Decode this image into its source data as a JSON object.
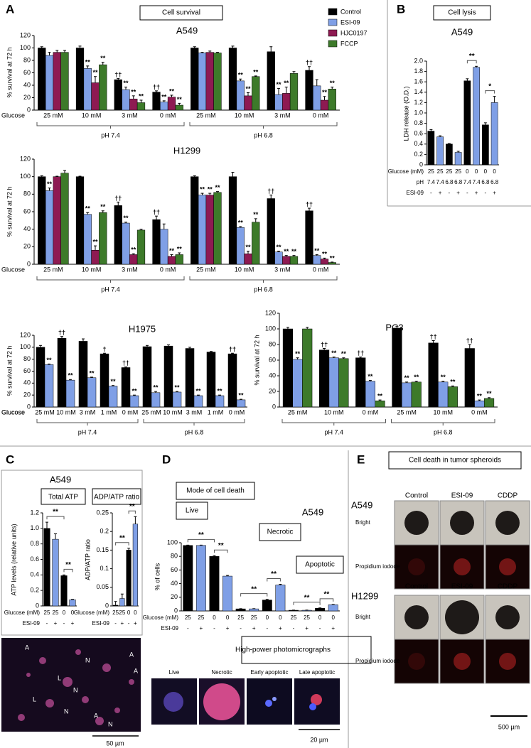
{
  "panels": [
    {
      "letter": "A",
      "heading": "Cell survival"
    },
    {
      "letter": "B",
      "heading": "Cell lysis"
    },
    {
      "letter": "C",
      "heading": "A549"
    },
    {
      "letter": "D",
      "heading": "Mode of cell death"
    },
    {
      "letter": "E",
      "heading": "Cell death in tumor spheroids"
    }
  ],
  "chart_data": [
    {
      "type": "bar",
      "title": "A549",
      "ylabel": "% survival at 72 h",
      "ylim": [
        0,
        120
      ],
      "yticks": [
        0,
        20,
        40,
        60,
        80,
        100,
        120
      ],
      "xlabel": "Glucose",
      "categories": [
        "25 mM",
        "10 mM",
        "3 mM",
        "0 mM",
        "25 mM",
        "10 mM",
        "3 mM",
        "0 mM"
      ],
      "groups": [
        "pH 7.4",
        "pH 6.8"
      ],
      "series": [
        {
          "name": "Control",
          "color": "#000000",
          "values": [
            100,
            100,
            49,
            29,
            100,
            100,
            94,
            64
          ],
          "errors": [
            2,
            3,
            2,
            2,
            2,
            3,
            8,
            6
          ],
          "significance": [
            null,
            null,
            "††",
            "††",
            null,
            null,
            null,
            "††"
          ]
        },
        {
          "name": "ESI-09",
          "color": "#7f9fe6",
          "values": [
            88,
            67,
            33,
            13,
            92,
            47,
            25,
            39
          ],
          "errors": [
            5,
            4,
            4,
            2,
            1,
            3,
            10,
            10
          ],
          "significance": [
            null,
            "**",
            "**",
            "**",
            null,
            "**",
            "**",
            null
          ]
        },
        {
          "name": "HJC0197",
          "color": "#8e1a52",
          "values": [
            93,
            44,
            18,
            21,
            93,
            23,
            27,
            16
          ],
          "errors": [
            3,
            10,
            5,
            3,
            2,
            5,
            10,
            6
          ],
          "significance": [
            null,
            "**",
            "**",
            "**",
            null,
            "**",
            "**",
            "**"
          ]
        },
        {
          "name": "FCCP",
          "color": "#3d7a2a",
          "values": [
            93,
            73,
            12,
            8,
            92,
            54,
            59,
            34
          ],
          "errors": [
            3,
            4,
            4,
            3,
            1,
            1,
            3,
            3
          ],
          "significance": [
            null,
            "**",
            "**",
            "**",
            null,
            "**",
            null,
            "**"
          ]
        }
      ]
    },
    {
      "type": "bar",
      "title": "H1299",
      "ylabel": "% survival at 72 h",
      "ylim": [
        0,
        120
      ],
      "yticks": [
        0,
        20,
        40,
        60,
        80,
        100,
        120
      ],
      "xlabel": "Glucose",
      "categories": [
        "25 mM",
        "10 mM",
        "3 mM",
        "0 mM",
        "25 mM",
        "10 mM",
        "3 mM",
        "0 mM"
      ],
      "groups": [
        "pH 7.4",
        "pH 6.8"
      ],
      "series": [
        {
          "name": "Control",
          "color": "#000000",
          "values": [
            100,
            100,
            67,
            51,
            100,
            100,
            75,
            61
          ],
          "errors": [
            1,
            0.5,
            4,
            4,
            1,
            5,
            4,
            3
          ],
          "significance": [
            null,
            null,
            "††",
            "††",
            null,
            null,
            "††",
            "††"
          ]
        },
        {
          "name": "ESI-09",
          "color": "#7f9fe6",
          "values": [
            84,
            57,
            47,
            40,
            79,
            42,
            14,
            10
          ],
          "errors": [
            3,
            2,
            1,
            6,
            2,
            1,
            1,
            1
          ],
          "significance": [
            "**",
            "**",
            "**",
            null,
            "**",
            "**",
            "**",
            "**"
          ]
        },
        {
          "name": "HJC0197",
          "color": "#8e1a52",
          "values": [
            100,
            16,
            11,
            9,
            79,
            12,
            9,
            6
          ],
          "errors": [
            0.5,
            5,
            1,
            2,
            2,
            3,
            1,
            1
          ],
          "significance": [
            null,
            "**",
            "**",
            "**",
            "**",
            "**",
            "**",
            "**"
          ]
        },
        {
          "name": "FCCP",
          "color": "#3d7a2a",
          "values": [
            104,
            59,
            39,
            11,
            82,
            48,
            9,
            2
          ],
          "errors": [
            3,
            2,
            1,
            2,
            1,
            4,
            1,
            0.5
          ],
          "significance": [
            null,
            "**",
            null,
            "**",
            "**",
            "**",
            "**",
            "**"
          ]
        }
      ]
    },
    {
      "type": "bar",
      "title": "H1975",
      "ylabel": "% survival at 72 h",
      "ylim": [
        0,
        120
      ],
      "yticks": [
        0,
        20,
        40,
        60,
        80,
        100,
        120
      ],
      "xlabel": "Glucose",
      "categories": [
        "25 mM",
        "10 mM",
        "3 mM",
        "1 mM",
        "0 mM",
        "25 mM",
        "10 mM",
        "3 mM",
        "1 mM",
        "0 mM"
      ],
      "groups": [
        "pH 7.4",
        "pH 6.8"
      ],
      "series": [
        {
          "name": "Control",
          "color": "#000000",
          "values": [
            100,
            115,
            110,
            89,
            66,
            101,
            102,
            98,
            92,
            89
          ],
          "errors": [
            3,
            3,
            4,
            1,
            1,
            2,
            2,
            2,
            1,
            1
          ],
          "significance": [
            null,
            "††",
            null,
            "†",
            "††",
            null,
            null,
            null,
            null,
            "††"
          ]
        },
        {
          "name": "ESI-09",
          "color": "#7f9fe6",
          "values": [
            71,
            45,
            49,
            35,
            19,
            24,
            25,
            19,
            19,
            12
          ],
          "errors": [
            1,
            1,
            1,
            1,
            1,
            2,
            1,
            1,
            1,
            1
          ],
          "significance": [
            "**",
            "**",
            "**",
            "**",
            "**",
            "**",
            "**",
            "**",
            "**",
            "**"
          ]
        }
      ]
    },
    {
      "type": "bar",
      "title": "PC3",
      "ylabel": "% survival at 72 h",
      "ylim": [
        0,
        120
      ],
      "yticks": [
        0,
        20,
        40,
        60,
        80,
        100,
        120
      ],
      "xlabel": "Glucose",
      "categories": [
        "25 mM",
        "10 mM",
        "0 mM",
        "25 mM",
        "10 mM",
        "0 mM"
      ],
      "groups": [
        "pH 7.4",
        "pH 6.8"
      ],
      "series": [
        {
          "name": "Control",
          "color": "#000000",
          "values": [
            100,
            73,
            63,
            101,
            82,
            75
          ],
          "errors": [
            2,
            2,
            1,
            2,
            3,
            5
          ],
          "significance": [
            null,
            "††",
            "††",
            null,
            "††",
            "††"
          ]
        },
        {
          "name": "ESI-09",
          "color": "#7f9fe6",
          "values": [
            61,
            63,
            33,
            31,
            32,
            8
          ],
          "errors": [
            2,
            1,
            1,
            1,
            1,
            1
          ],
          "significance": [
            "**",
            "**",
            "**",
            "**",
            "**",
            "**"
          ]
        },
        {
          "name": "FCCP",
          "color": "#3d7a2a",
          "values": [
            100,
            62,
            8,
            32,
            26,
            11
          ],
          "errors": [
            2,
            1,
            1,
            1,
            1,
            1
          ],
          "significance": [
            null,
            "**",
            "**",
            "**",
            "**",
            "**"
          ]
        }
      ]
    },
    {
      "type": "bar",
      "title": "A549",
      "ylabel": "LDH release (O.D.)",
      "ylim": [
        0,
        2
      ],
      "yticks": [
        0,
        0.2,
        0.4,
        0.6,
        0.8,
        {
          "value": 1,
          "label": "1.0"
        },
        1.2,
        1.4,
        1.6,
        1.8,
        {
          "value": 2,
          "label": "2.0"
        }
      ],
      "rows": [
        {
          "name": "Glucose (mM)",
          "labels": [
            "25",
            "25",
            "25",
            "25",
            "0",
            "0",
            "0",
            "0"
          ]
        },
        {
          "name": "pH",
          "labels": [
            "7.4",
            "7.4",
            "6.8",
            "6.8",
            "7.4",
            "7.4",
            "6.8",
            "6.8"
          ]
        },
        {
          "name": "ESI-09",
          "labels": [
            "-",
            "+",
            "-",
            "+",
            "-",
            "+",
            "-",
            "+"
          ]
        }
      ],
      "colors": [
        "#000000",
        "#7f9fe6"
      ],
      "values": [
        0.65,
        0.54,
        0.4,
        0.24,
        1.62,
        1.88,
        0.77,
        1.2
      ],
      "errors": [
        0.03,
        0.02,
        0.01,
        0.02,
        0.04,
        0.02,
        0.04,
        0.12
      ],
      "comparisons": [
        "**",
        "*"
      ]
    },
    {
      "type": "bar",
      "title": "Total ATP",
      "ylabel": "ATP levels (relative units)",
      "ylim": [
        0,
        1.2
      ],
      "yticks": [
        0,
        0.2,
        0.4,
        0.6,
        0.8,
        {
          "value": 1,
          "label": "1.0"
        },
        1.2
      ],
      "rows": [
        {
          "name": "Glucose (mM)",
          "labels": [
            "25",
            "25",
            "0",
            "0"
          ]
        },
        {
          "name": "ESI-09",
          "labels": [
            "-",
            "+",
            "-",
            "+"
          ]
        }
      ],
      "colors": [
        "#000000",
        "#7f9fe6"
      ],
      "values": [
        1.0,
        0.86,
        0.39,
        0.08
      ],
      "errors": [
        0.08,
        0.07,
        0.01,
        0.005
      ],
      "comparisons": [
        "**",
        "**"
      ]
    },
    {
      "type": "bar",
      "title": "ADP/ATP ratio",
      "ylabel": "ADP/ATP ratio",
      "ylim": [
        0,
        0.25
      ],
      "yticks": [
        0,
        0.05,
        0.1,
        0.15,
        0.2,
        0.25
      ],
      "rows": [
        {
          "name": "Glucose (mM)",
          "labels": [
            "25",
            "25",
            "0",
            "0"
          ]
        },
        {
          "name": "ESI-09",
          "labels": [
            "-",
            "+",
            "-",
            "+"
          ]
        }
      ],
      "colors": [
        "#000000",
        "#7f9fe6"
      ],
      "values": [
        0.002,
        0.02,
        0.15,
        0.22
      ],
      "errors": [
        0.01,
        0.012,
        0.005,
        0.02
      ],
      "comparisons": [
        "**",
        "**"
      ]
    },
    {
      "type": "bar",
      "title": "A549",
      "ylabel": "% of cells",
      "ylim": [
        0,
        100
      ],
      "yticks": [
        0,
        20,
        40,
        60,
        80,
        100
      ],
      "groups": [
        "Live",
        "Necrotic",
        "Apoptotic"
      ],
      "rows": [
        {
          "name": "Glucose (mM)",
          "labels": [
            "25",
            "25",
            "0",
            "0",
            "25",
            "25",
            "0",
            "0",
            "25",
            "25",
            "0",
            "0"
          ]
        },
        {
          "name": "ESI-09",
          "labels": [
            "-",
            "+",
            "-",
            "+",
            "-",
            "+",
            "-",
            "+",
            "-",
            "+",
            "-",
            "+"
          ]
        }
      ],
      "colors": [
        "#000000",
        "#7f9fe6"
      ],
      "values": [
        96,
        96,
        80,
        51,
        3,
        3,
        16,
        38,
        1,
        1,
        4,
        9
      ],
      "errors": [
        0.5,
        0.5,
        1,
        1,
        0.3,
        0.3,
        1,
        1,
        0.2,
        0.2,
        0.4,
        0.5
      ],
      "comparisons": [
        "**",
        "**",
        "**",
        "**",
        "**",
        "**"
      ]
    }
  ],
  "spheroids": {
    "rows": [
      "A549",
      "H1299"
    ],
    "columns": [
      "Control",
      "ESI-09",
      "CDDP"
    ],
    "channels": [
      "Bright",
      "Propidium iodode"
    ],
    "scale": "500 µm"
  },
  "micrographs": {
    "labels": [
      "A",
      "A",
      "A",
      "L",
      "L",
      "N",
      "N",
      "A",
      "N",
      "N"
    ],
    "scale": "50 µm",
    "heading": "High-power photomicrographs",
    "panels": [
      "Live",
      "Necrotic",
      "Early apoptotic",
      "Late apoptotic"
    ],
    "scale_hp": "20 µm"
  }
}
